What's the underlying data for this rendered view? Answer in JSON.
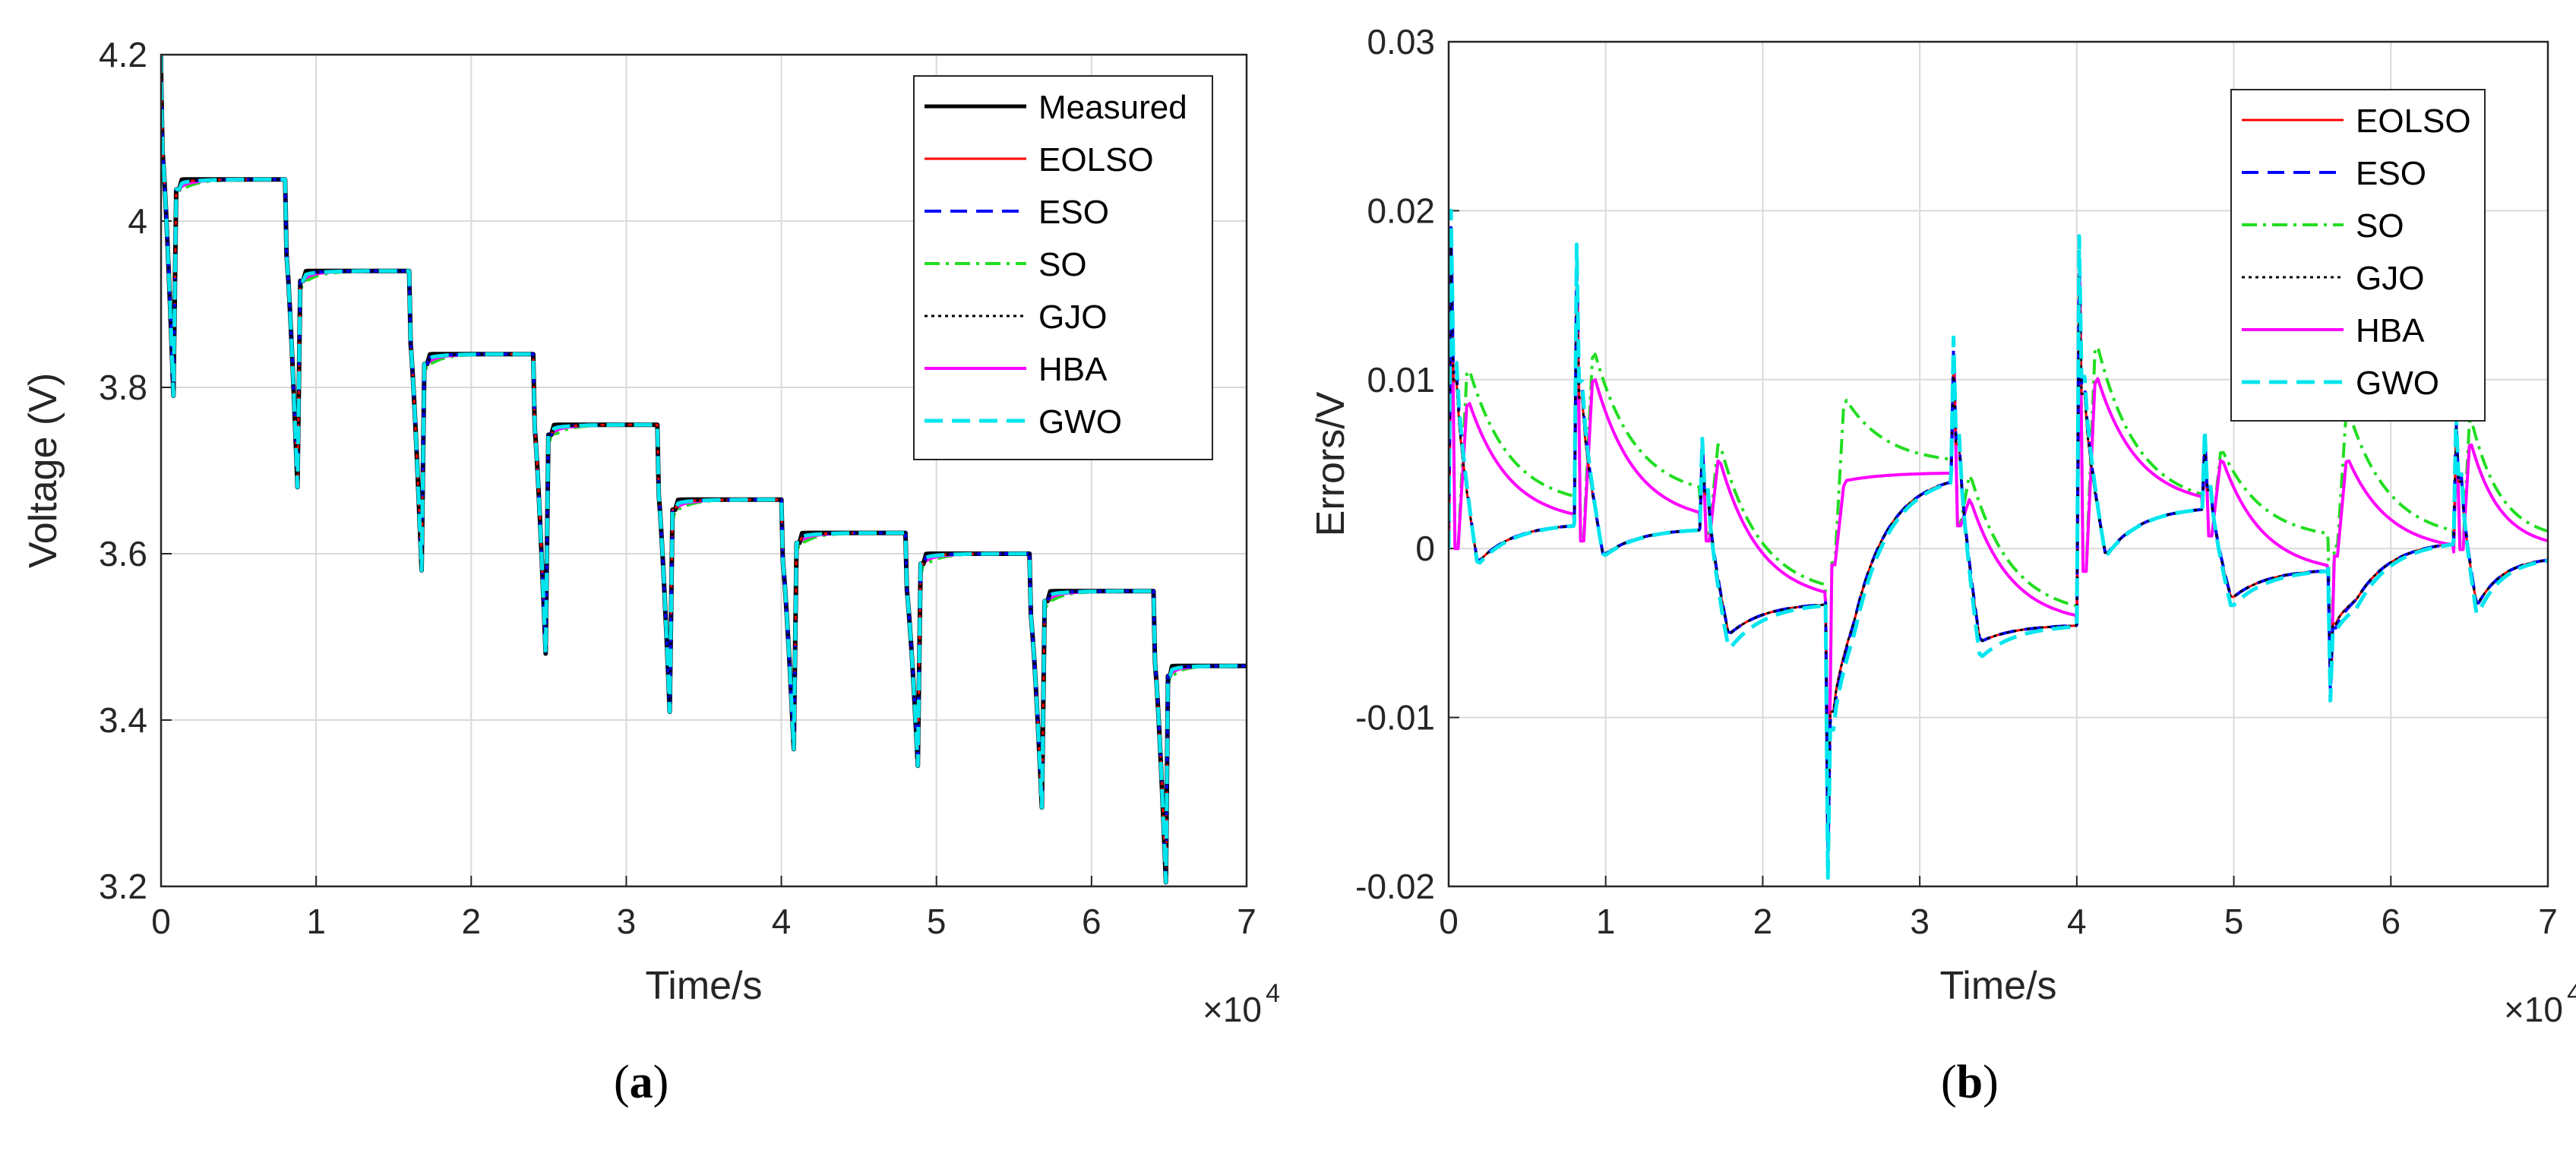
{
  "figure": {
    "panel_labels": [
      "a",
      "b"
    ],
    "colors": {
      "Measured": "#000000",
      "EOLSO": "#ff0000",
      "ESO": "#0000ff",
      "SO": "#22dd22",
      "GJO": "#000000",
      "HBA": "#ff00ff",
      "GWO": "#00e5ee"
    }
  },
  "chart_data": [
    {
      "type": "line",
      "id": "a",
      "title": "",
      "xlabel": "Time/s",
      "ylabel": "Voltage (V)",
      "x_multiplier_label": "×10",
      "x_multiplier_exp": "4",
      "xlim": [
        0,
        7
      ],
      "ylim": [
        3.2,
        4.2
      ],
      "xticks": [
        0,
        1,
        2,
        3,
        4,
        5,
        6,
        7
      ],
      "xtick_labels": [
        "0",
        "1",
        "2",
        "3",
        "4",
        "5",
        "6",
        "7"
      ],
      "yticks": [
        3.2,
        3.4,
        3.6,
        3.8,
        4.0,
        4.2
      ],
      "ytick_labels": [
        "3.2",
        "3.4",
        "3.6",
        "3.8",
        "4",
        "4.2"
      ],
      "grid": true,
      "legend_position": "top-right",
      "legend": [
        "Measured",
        "EOLSO",
        "ESO",
        "SO",
        "GJO",
        "HBA",
        "GWO"
      ],
      "pulse_profile": {
        "pulse_starts_x1e4": [
          0.0,
          0.8,
          1.6,
          2.4,
          3.2,
          4.0,
          4.8,
          5.6,
          6.4
        ],
        "pulse_ends_x1e4": [
          0.08,
          0.88,
          1.68,
          2.48,
          3.28,
          4.08,
          4.88,
          5.68,
          6.48
        ],
        "rest_voltages_V": [
          4.18,
          4.05,
          3.94,
          3.84,
          3.755,
          3.665,
          3.625,
          3.6,
          3.555,
          3.465
        ],
        "pulse_min_voltages_V": [
          3.79,
          3.68,
          3.58,
          3.48,
          3.41,
          3.365,
          3.345,
          3.295,
          3.205
        ]
      }
    },
    {
      "type": "line",
      "id": "b",
      "title": "",
      "xlabel": "Time/s",
      "ylabel": "Errors/V",
      "x_multiplier_label": "×10",
      "x_multiplier_exp": "4",
      "xlim": [
        0,
        7
      ],
      "ylim": [
        -0.02,
        0.03
      ],
      "xticks": [
        0,
        1,
        2,
        3,
        4,
        5,
        6,
        7
      ],
      "xtick_labels": [
        "0",
        "1",
        "2",
        "3",
        "4",
        "5",
        "6",
        "7"
      ],
      "yticks": [
        -0.02,
        -0.01,
        0,
        0.01,
        0.02,
        0.03
      ],
      "ytick_labels": [
        "-0.02",
        "-0.01",
        "0",
        "0.01",
        "0.02",
        "0.03"
      ],
      "grid": true,
      "legend_position": "top-right",
      "legend": [
        "EOLSO",
        "ESO",
        "SO",
        "GJO",
        "HBA",
        "GWO"
      ],
      "error_profile": {
        "pulse_starts_x1e4": [
          0.0,
          0.8,
          1.6,
          2.4,
          3.2,
          4.0,
          4.8,
          5.6,
          6.4
        ],
        "spike_peaks": [
          0.02,
          0.018,
          0.0065,
          -0.0195,
          0.0125,
          0.0185,
          0.007,
          -0.009,
          0.008
        ],
        "SO_peaks": [
          0.011,
          0.012,
          0.0065,
          0.009,
          0.0045,
          0.0125,
          0.006,
          0.0085,
          0.008
        ],
        "SO_end_values": [
          0.0025,
          0.003,
          -0.0028,
          0.005,
          -0.004,
          0.0025,
          0.0005,
          0.0005,
          0.0005
        ],
        "HBA_peaks": [
          0.009,
          0.0105,
          0.0055,
          0.004,
          0.003,
          0.0105,
          0.0055,
          0.0055,
          0.0065
        ],
        "HBA_end_values": [
          0.0015,
          0.0015,
          -0.0032,
          0.0045,
          -0.0045,
          0.0025,
          -0.0015,
          -0.0002,
          0.0
        ],
        "GWO_dips": [
          -0.001,
          -0.0005,
          -0.006,
          -0.005,
          -0.0065,
          -0.0005,
          -0.0035,
          -0.0035,
          -0.004
        ],
        "GWO_end_values": [
          0.0015,
          0.0012,
          -0.0032,
          0.0045,
          -0.0045,
          0.0025,
          -0.0012,
          0.0005,
          -0.0005
        ]
      }
    }
  ]
}
